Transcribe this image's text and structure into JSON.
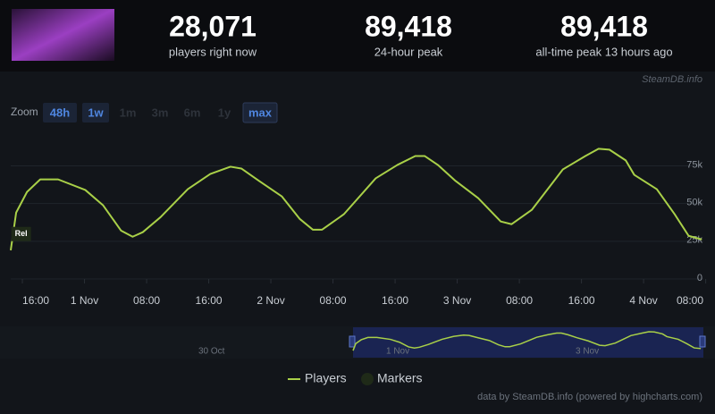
{
  "header": {
    "stats": [
      {
        "value": "28,071",
        "label": "players right now"
      },
      {
        "value": "89,418",
        "label": "24-hour peak"
      },
      {
        "value": "89,418",
        "label": "all-time peak 13 hours ago"
      }
    ],
    "credit": "SteamDB.info"
  },
  "zoom": {
    "label": "Zoom",
    "buttons": [
      {
        "label": "48h",
        "enabled": true
      },
      {
        "label": "1w",
        "enabled": true
      },
      {
        "label": "1m",
        "enabled": false
      },
      {
        "label": "3m",
        "enabled": false
      },
      {
        "label": "6m",
        "enabled": false
      },
      {
        "label": "1y",
        "enabled": false
      },
      {
        "label": "max",
        "enabled": true
      }
    ]
  },
  "chart_data": {
    "type": "line",
    "x": [
      -1.5,
      -0.8,
      0.6,
      2.3,
      4.6,
      8.1,
      10.4,
      12.7,
      14.2,
      15.5,
      17.8,
      21.3,
      24.2,
      26.8,
      28.2,
      30.5,
      33.4,
      35.7,
      37.4,
      38.6,
      41.4,
      45.5,
      48.3,
      50.6,
      51.8,
      53.5,
      55.8,
      58.7,
      61.6,
      63.0,
      65.6,
      69.6,
      72.5,
      74.2,
      75.6,
      77.7,
      78.8,
      81.7,
      84.0,
      85.8,
      87.5
    ],
    "series": [
      {
        "name": "Players",
        "color": "#a9d048",
        "values": [
          19000,
          44000,
          57700,
          66000,
          66000,
          59000,
          48800,
          32100,
          28000,
          31000,
          41000,
          59500,
          69600,
          74400,
          73200,
          64900,
          54800,
          39900,
          32700,
          32700,
          42900,
          66700,
          75600,
          81500,
          81500,
          75600,
          64900,
          53600,
          38100,
          36300,
          45800,
          72600,
          81500,
          86300,
          85700,
          78600,
          69000,
          59500,
          42900,
          28600,
          26200
        ]
      }
    ],
    "xlim": [
      -1.5,
      87.7
    ],
    "xticks": [
      {
        "value": 0,
        "label": "16:00"
      },
      {
        "value": 8,
        "label": "1 Nov"
      },
      {
        "value": 16,
        "label": "08:00"
      },
      {
        "value": 24,
        "label": "16:00"
      },
      {
        "value": 32,
        "label": "2 Nov"
      },
      {
        "value": 40,
        "label": "08:00"
      },
      {
        "value": 48,
        "label": "16:00"
      },
      {
        "value": 56,
        "label": "3 Nov"
      },
      {
        "value": 64,
        "label": "08:00"
      },
      {
        "value": 72,
        "label": "16:00"
      },
      {
        "value": 80,
        "label": "4 Nov"
      },
      {
        "value": 88,
        "label": "08:00"
      }
    ],
    "ylim": [
      0,
      96000
    ],
    "yticks": [
      0,
      {
        "value": 25000,
        "label": "25k"
      },
      {
        "value": 50000,
        "label": "50k"
      },
      {
        "value": 75000,
        "label": "75k"
      }
    ],
    "grid": true,
    "markers": {
      "name": "Markers",
      "items": [
        {
          "label": "Rel",
          "x": -1.2,
          "y": 29800
        }
      ]
    }
  },
  "navigator": {
    "labels": [
      "30 Oct",
      "1 Nov",
      "3 Nov"
    ]
  },
  "footer": "data by SteamDB.info (powered by highcharts.com)"
}
